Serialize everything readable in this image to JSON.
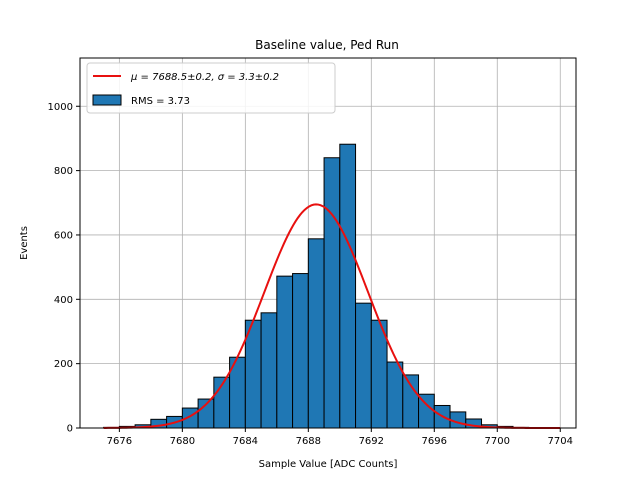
{
  "chart_data": {
    "type": "bar",
    "title": "Baseline value, Ped Run",
    "xlabel": "Sample Value [ADC Counts]",
    "ylabel": "Events",
    "xlim": [
      7673.5,
      7705.0
    ],
    "ylim": [
      0,
      1150
    ],
    "xticks": [
      7676,
      7680,
      7684,
      7688,
      7692,
      7696,
      7700,
      7704
    ],
    "yticks": [
      0,
      200,
      400,
      600,
      800,
      1000
    ],
    "grid": true,
    "legend_position": "top-left",
    "bin_edges": [
      7675,
      7676,
      7677,
      7678,
      7679,
      7680,
      7681,
      7682,
      7683,
      7684,
      7685,
      7686,
      7687,
      7688,
      7689,
      7690,
      7691,
      7692,
      7693,
      7694,
      7695,
      7696,
      7697,
      7698,
      7699,
      7700,
      7701,
      7702,
      7703,
      7704
    ],
    "series": [
      {
        "name": "RMS = 3.73",
        "type": "histogram",
        "color": "#1f77b4",
        "values": [
          2,
          5,
          10,
          27,
          36,
          62,
          90,
          158,
          220,
          335,
          358,
          472,
          480,
          588,
          840,
          882,
          388,
          335,
          205,
          165,
          105,
          70,
          50,
          28,
          10,
          5,
          2,
          1,
          0
        ]
      },
      {
        "name": "μ = 7688.5±0.2, σ = 3.3±0.2",
        "type": "line",
        "color": "#e8100f",
        "mu": 7688.5,
        "sigma": 3.3,
        "amplitude": 695
      }
    ]
  }
}
